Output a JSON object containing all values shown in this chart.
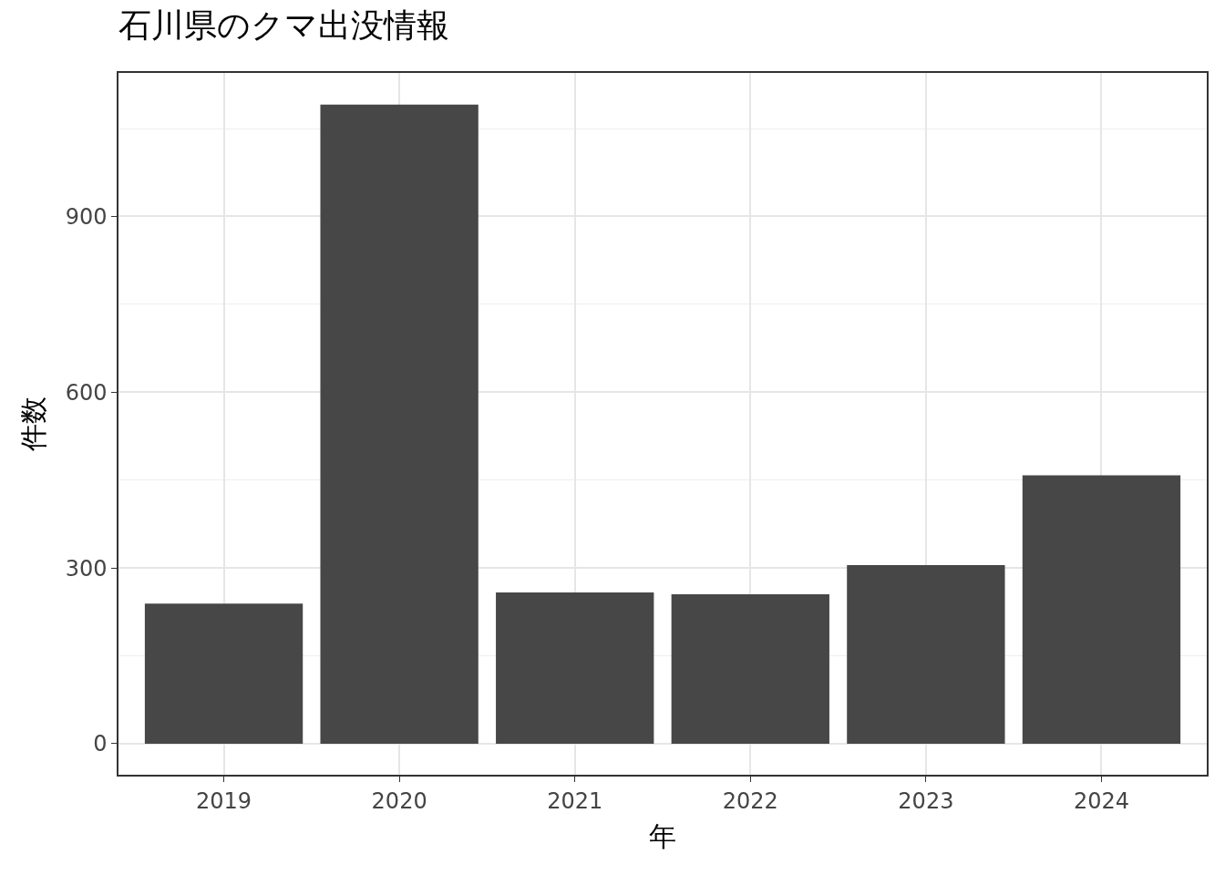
{
  "chart_data": {
    "type": "bar",
    "title": "石川県のクマ出没情報",
    "xlabel": "年",
    "ylabel": "件数",
    "categories": [
      "2019",
      "2020",
      "2021",
      "2022",
      "2023",
      "2024"
    ],
    "values": [
      239,
      1091,
      258,
      255,
      305,
      458
    ],
    "color": "#474747",
    "ylim": [
      -53,
      1145
    ],
    "yticks": [
      0,
      300,
      600,
      900
    ],
    "grid": true,
    "legend": false
  }
}
